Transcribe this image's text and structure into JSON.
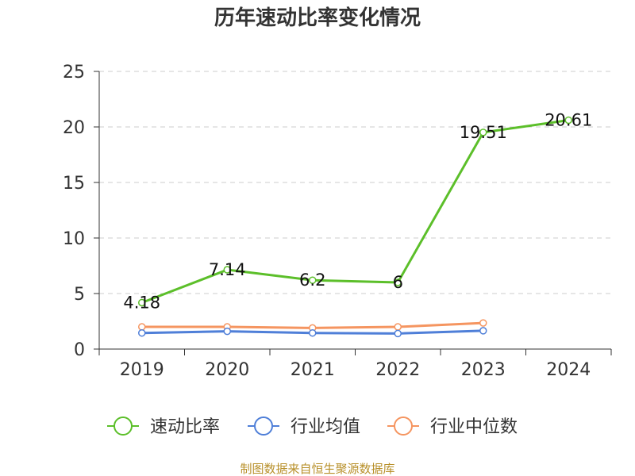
{
  "chart_data": {
    "type": "line",
    "title": "历年速动比率变化情况",
    "categories": [
      "2019",
      "2020",
      "2021",
      "2022",
      "2023",
      "2024"
    ],
    "ylim": [
      0,
      25
    ],
    "yticks": [
      "0",
      "5",
      "10",
      "15",
      "20",
      "25"
    ],
    "grid": true,
    "legend_position": "bottom",
    "series": [
      {
        "name": "速动比率",
        "color": "#5cbf2a",
        "values": [
          4.18,
          7.14,
          6.2,
          6,
          19.51,
          20.61
        ],
        "labels": [
          "4.18",
          "7.14",
          "6.2",
          "6",
          "19.51",
          "20.61"
        ]
      },
      {
        "name": "行业均值",
        "color": "#4f7fd8",
        "values": [
          1.45,
          1.6,
          1.45,
          1.4,
          1.65,
          null
        ]
      },
      {
        "name": "行业中位数",
        "color": "#f59560",
        "values": [
          2.0,
          2.0,
          1.9,
          2.0,
          2.35,
          null
        ]
      }
    ]
  },
  "source_text": "制图数据来自恒生聚源数据库"
}
